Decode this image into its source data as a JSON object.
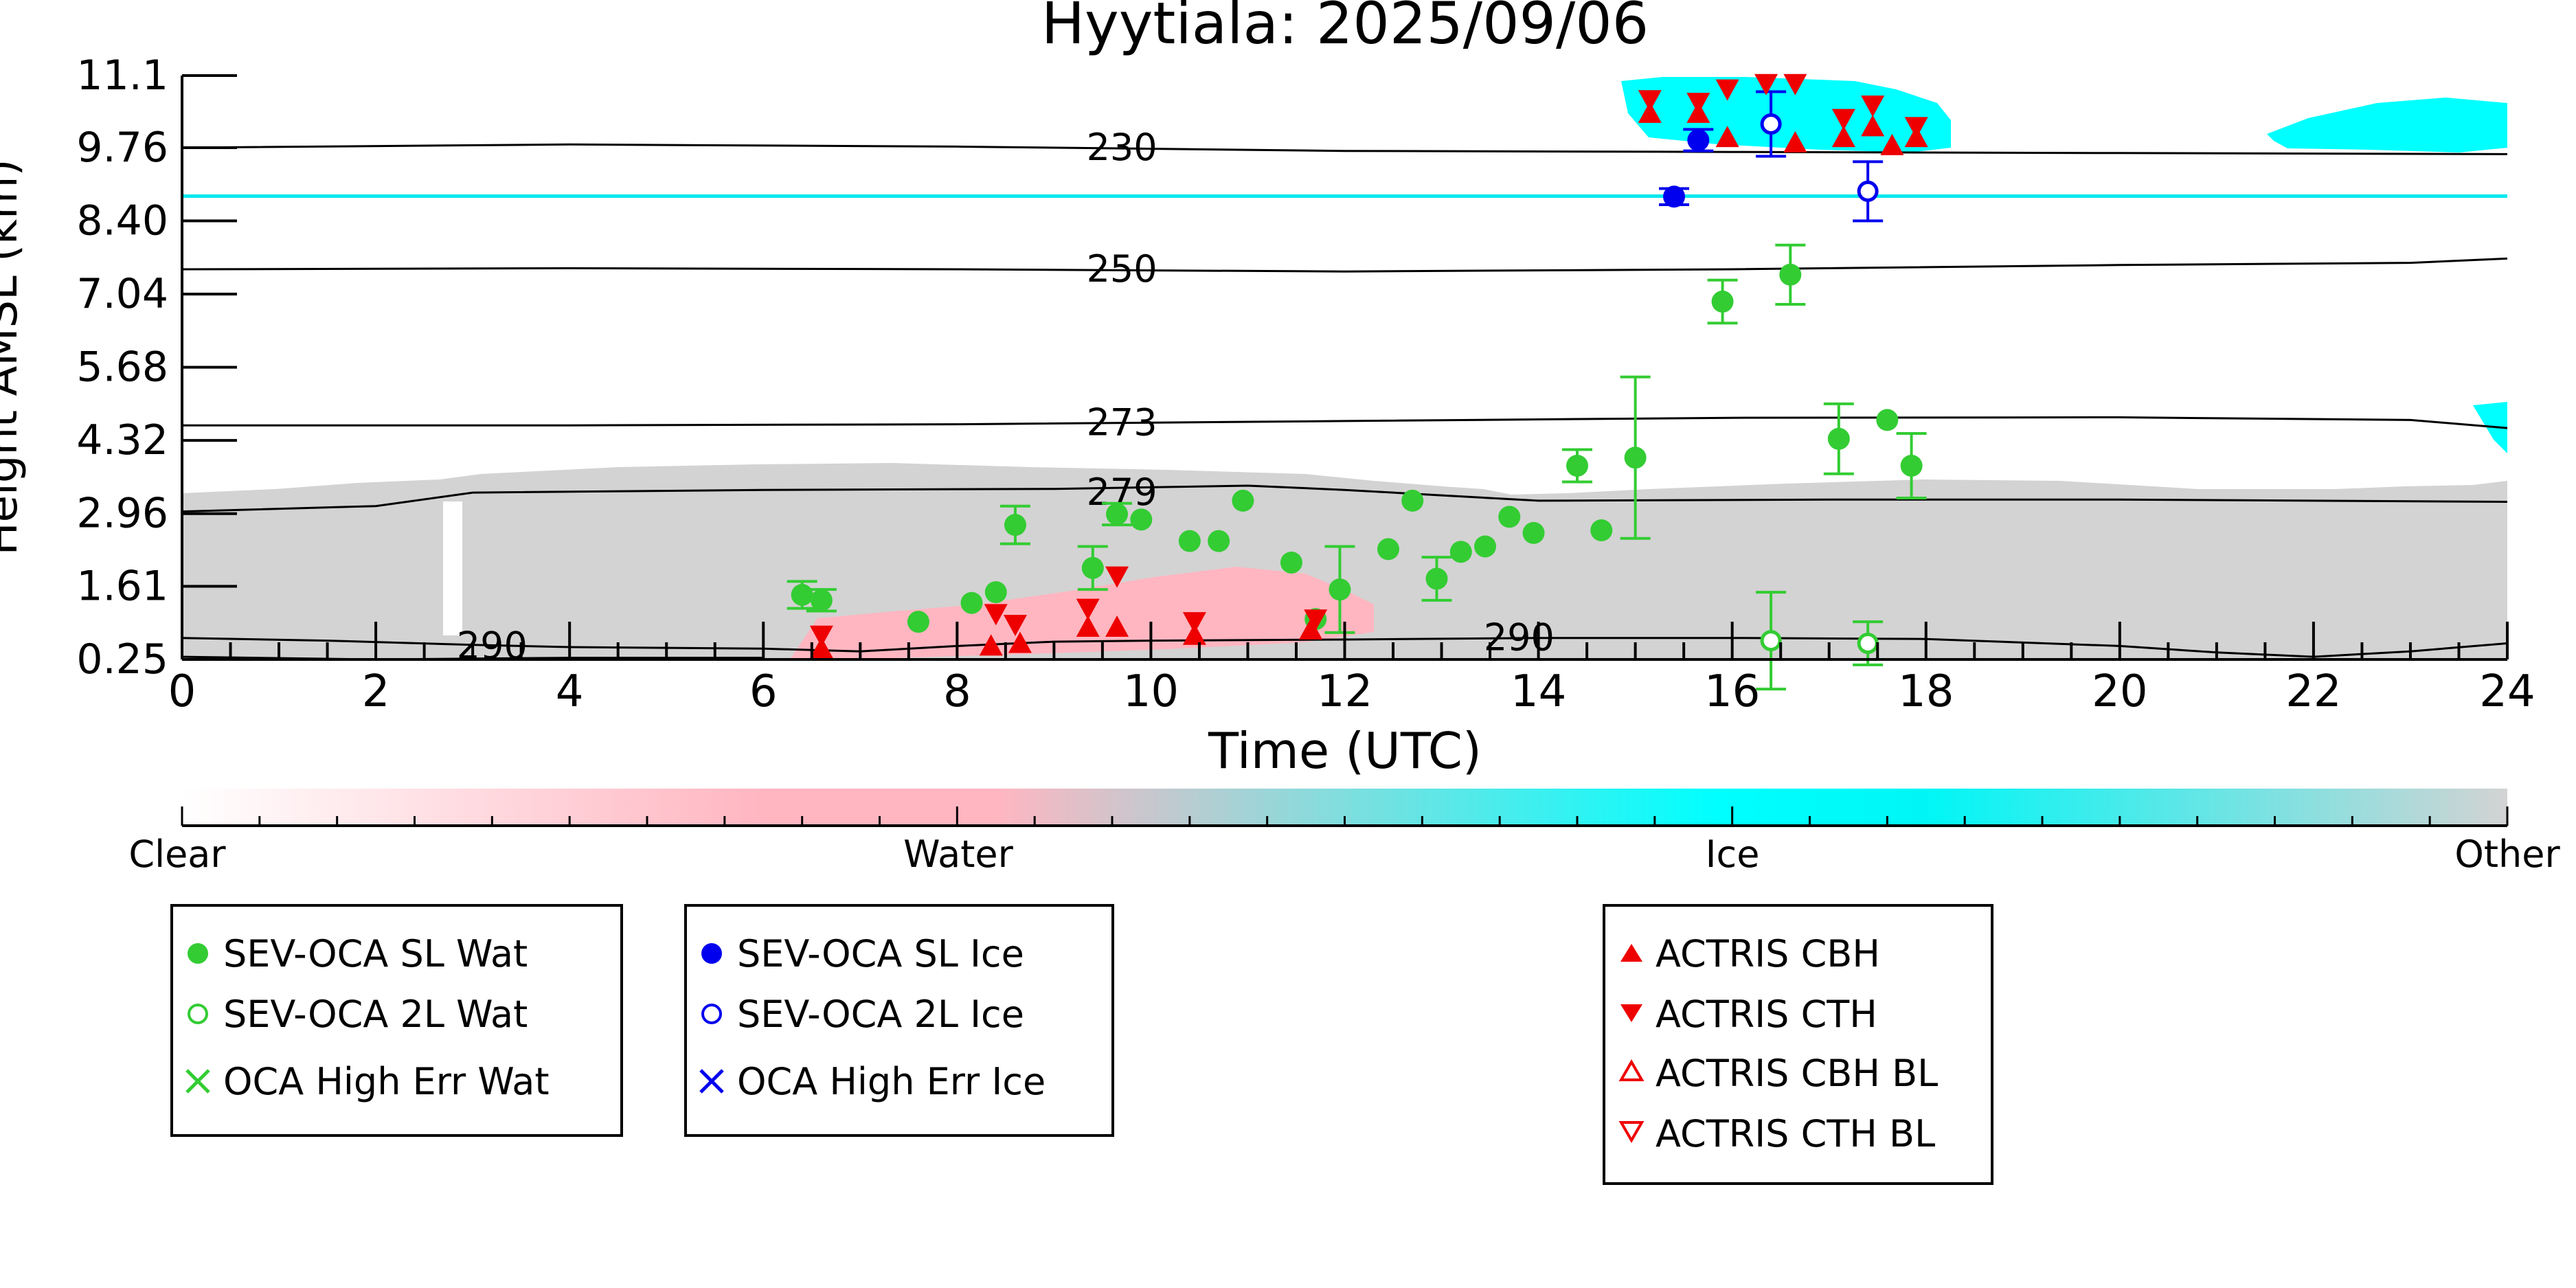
{
  "chart_data": {
    "type": "scatter",
    "title": "Hyytiala: 2025/09/06",
    "xlabel": "Time (UTC)",
    "ylabel": "Height AMSL (km)",
    "xlim": [
      0,
      24
    ],
    "ylim": [
      0.25,
      11.1
    ],
    "x_ticks": [
      "0",
      "2",
      "4",
      "6",
      "8",
      "10",
      "12",
      "14",
      "16",
      "18",
      "20",
      "22",
      "24"
    ],
    "y_ticks": [
      "0.25",
      "1.61",
      "2.96",
      "4.32",
      "5.68",
      "7.04",
      "8.40",
      "9.76",
      "11.1"
    ],
    "grid": false,
    "background_classes": {
      "colorbar_labels": [
        "Clear",
        "Water",
        "Ice",
        "Other"
      ],
      "colors": {
        "Clear": "#ffffff",
        "Water": "#ffb6c1",
        "Ice": "#00ffff",
        "Other": "#d3d3d3"
      }
    },
    "contours": [
      {
        "label": "230",
        "label_at": [
          9.7,
          9.76
        ],
        "points": [
          [
            0,
            9.76
          ],
          [
            4,
            9.82
          ],
          [
            8,
            9.78
          ],
          [
            12,
            9.7
          ],
          [
            16,
            9.68
          ],
          [
            20,
            9.66
          ],
          [
            24,
            9.64
          ]
        ]
      },
      {
        "label": "250",
        "label_at": [
          9.7,
          7.5
        ],
        "points": [
          [
            0,
            7.5
          ],
          [
            4,
            7.52
          ],
          [
            8,
            7.5
          ],
          [
            12,
            7.46
          ],
          [
            16,
            7.5
          ],
          [
            20,
            7.58
          ],
          [
            23,
            7.62
          ],
          [
            24,
            7.7
          ]
        ]
      },
      {
        "label": "273",
        "label_at": [
          9.7,
          4.65
        ],
        "points": [
          [
            0,
            4.6
          ],
          [
            4,
            4.6
          ],
          [
            8,
            4.62
          ],
          [
            12,
            4.68
          ],
          [
            16,
            4.74
          ],
          [
            20,
            4.75
          ],
          [
            23,
            4.7
          ],
          [
            24,
            4.55
          ]
        ]
      },
      {
        "label": "279",
        "label_at": [
          9.7,
          3.35
        ],
        "points": [
          [
            0,
            3.0
          ],
          [
            2,
            3.1
          ],
          [
            3,
            3.35
          ],
          [
            6,
            3.4
          ],
          [
            9,
            3.42
          ],
          [
            11,
            3.48
          ],
          [
            12,
            3.4
          ],
          [
            13,
            3.3
          ],
          [
            14,
            3.2
          ],
          [
            17,
            3.22
          ],
          [
            20,
            3.22
          ],
          [
            24,
            3.18
          ]
        ]
      },
      {
        "label": "290",
        "label_at": [
          3.2,
          0.5
        ],
        "points": [
          [
            0,
            0.65
          ],
          [
            1.5,
            0.6
          ],
          [
            3,
            0.52
          ],
          [
            4,
            0.48
          ],
          [
            6,
            0.45
          ],
          [
            7,
            0.4
          ],
          [
            8,
            0.5
          ],
          [
            9,
            0.58
          ],
          [
            10,
            0.6
          ],
          [
            12,
            0.62
          ],
          [
            14,
            0.65
          ],
          [
            16,
            0.65
          ],
          [
            18,
            0.63
          ],
          [
            20,
            0.5
          ],
          [
            21,
            0.38
          ],
          [
            22,
            0.3
          ],
          [
            23,
            0.4
          ],
          [
            24,
            0.55
          ]
        ]
      },
      {
        "label": "290",
        "label_at": [
          13.8,
          0.65
        ],
        "points": [
          [
            0,
            0.3
          ],
          [
            2,
            0.25
          ],
          [
            4,
            0.28
          ],
          [
            6,
            0.28
          ]
        ]
      }
    ],
    "series": [
      {
        "name": "SEV-OCA SL Wat",
        "color": "#33cc33",
        "marker": "circle-filled",
        "points": [
          [
            6.4,
            1.45,
            0.25
          ],
          [
            6.6,
            1.35,
            0.2
          ],
          [
            7.6,
            0.95,
            0
          ],
          [
            8.15,
            1.3,
            0
          ],
          [
            8.4,
            1.5,
            0
          ],
          [
            8.6,
            2.75,
            0.35
          ],
          [
            9.4,
            1.95,
            0.4
          ],
          [
            9.65,
            2.95,
            0.2
          ],
          [
            9.9,
            2.85,
            0
          ],
          [
            10.4,
            2.45,
            0
          ],
          [
            10.7,
            2.45,
            0
          ],
          [
            10.95,
            3.2,
            0
          ],
          [
            11.45,
            2.05,
            0
          ],
          [
            11.7,
            1.0,
            0
          ],
          [
            11.95,
            1.55,
            0.8
          ],
          [
            12.45,
            2.3,
            0
          ],
          [
            12.7,
            3.2,
            0
          ],
          [
            12.95,
            1.75,
            0.4
          ],
          [
            13.2,
            2.25,
            0
          ],
          [
            13.45,
            2.35,
            0
          ],
          [
            13.7,
            2.9,
            0
          ],
          [
            13.95,
            2.6,
            0
          ],
          [
            14.4,
            3.85,
            0.3
          ],
          [
            14.65,
            2.65,
            0
          ],
          [
            15.0,
            4.0,
            1.5
          ],
          [
            15.9,
            6.9,
            0.4
          ],
          [
            16.6,
            7.4,
            0.55
          ],
          [
            17.1,
            4.35,
            0.65
          ],
          [
            17.6,
            4.7,
            0
          ],
          [
            17.85,
            3.85,
            0.6
          ]
        ]
      },
      {
        "name": "SEV-OCA 2L Wat",
        "color": "#33cc33",
        "marker": "circle-open",
        "points": [
          [
            16.4,
            0.6,
            0.9
          ],
          [
            17.4,
            0.55,
            0.4
          ]
        ]
      },
      {
        "name": "OCA High Err Wat",
        "color": "#33cc33",
        "marker": "x",
        "points": []
      },
      {
        "name": "SEV-OCA SL Ice",
        "color": "#0000ee",
        "marker": "circle-filled",
        "points": [
          [
            15.4,
            8.85,
            0.15
          ],
          [
            15.65,
            9.9,
            0.2
          ]
        ]
      },
      {
        "name": "SEV-OCA 2L Ice",
        "color": "#0000ee",
        "marker": "circle-open",
        "points": [
          [
            16.4,
            10.2,
            0.6
          ],
          [
            17.4,
            8.95,
            0.55
          ]
        ]
      },
      {
        "name": "OCA High Err Ice",
        "color": "#0000ee",
        "marker": "x",
        "points": []
      },
      {
        "name": "ACTRIS CBH",
        "color": "#ee0000",
        "marker": "triangle-up",
        "points": [
          [
            6.6,
            0.45
          ],
          [
            8.35,
            0.5
          ],
          [
            8.65,
            0.55
          ],
          [
            9.35,
            0.85
          ],
          [
            9.65,
            0.85
          ],
          [
            10.45,
            0.7
          ],
          [
            11.65,
            0.8
          ],
          [
            15.15,
            10.4
          ],
          [
            15.65,
            10.4
          ],
          [
            15.95,
            9.95
          ],
          [
            16.65,
            9.85
          ],
          [
            17.15,
            9.95
          ],
          [
            17.45,
            10.15
          ],
          [
            17.65,
            9.8
          ],
          [
            17.9,
            9.95
          ]
        ]
      },
      {
        "name": "ACTRIS CTH",
        "color": "#ee0000",
        "marker": "triangle-down",
        "points": [
          [
            6.6,
            0.7
          ],
          [
            8.4,
            1.1
          ],
          [
            8.6,
            0.9
          ],
          [
            9.35,
            1.2
          ],
          [
            9.65,
            1.8
          ],
          [
            10.45,
            0.95
          ],
          [
            11.7,
            1.0
          ],
          [
            15.15,
            10.65
          ],
          [
            15.65,
            10.6
          ],
          [
            15.95,
            10.85
          ],
          [
            16.35,
            10.95
          ],
          [
            16.65,
            10.95
          ],
          [
            17.15,
            10.3
          ],
          [
            17.45,
            10.55
          ],
          [
            17.9,
            10.15
          ]
        ]
      },
      {
        "name": "ACTRIS CBH BL",
        "color": "#ee0000",
        "marker": "triangle-up-open",
        "points": []
      },
      {
        "name": "ACTRIS CTH BL",
        "color": "#ee0000",
        "marker": "triangle-down-open",
        "points": []
      }
    ],
    "legend_groups": [
      [
        "SEV-OCA SL Wat",
        "SEV-OCA 2L Wat",
        "OCA High Err Wat"
      ],
      [
        "SEV-OCA SL Ice",
        "SEV-OCA 2L Ice",
        "OCA High Err Ice"
      ],
      [
        "ACTRIS CBH",
        "ACTRIS CTH",
        "ACTRIS CBH BL",
        "ACTRIS CTH BL"
      ]
    ]
  }
}
